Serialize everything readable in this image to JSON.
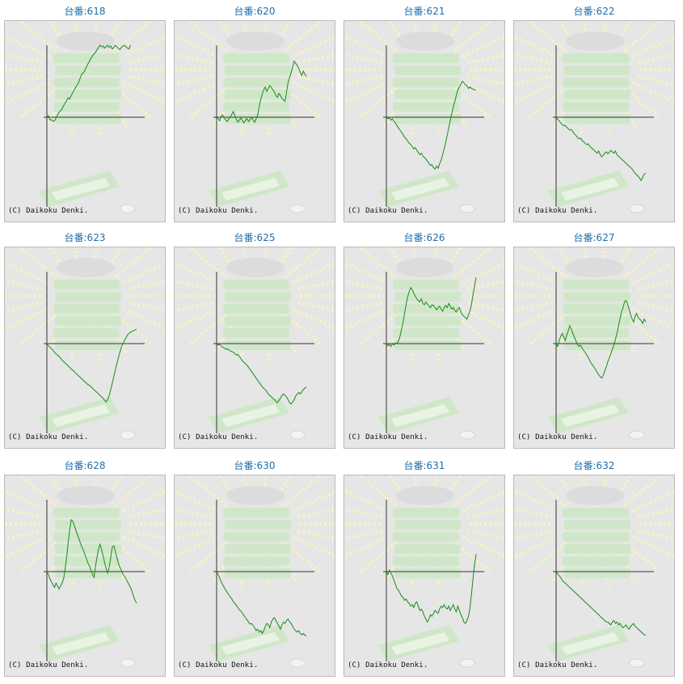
{
  "page": {
    "copyright": "(C) Daikoku Denki.",
    "colors": {
      "title": "#1f6fa8",
      "line": "#1a8a1a",
      "axis": "#333333",
      "panel_bg": "#e6e6e6",
      "border": "#b9b9b9",
      "watermark": "#cfe6c8",
      "rays": "#f4f2c4"
    }
  },
  "chart_data": [
    {
      "type": "line",
      "title": "台番:618",
      "ylim": [
        -100,
        100
      ],
      "x": [
        0,
        1,
        2,
        3,
        4,
        5,
        6,
        7,
        8,
        9,
        10,
        11,
        12,
        13,
        14,
        15,
        16,
        17,
        18,
        19,
        20,
        21,
        22,
        23,
        24,
        25,
        26,
        27,
        28,
        29,
        30,
        31,
        32,
        33,
        34,
        35,
        36,
        37,
        38,
        39,
        40,
        41,
        42,
        43,
        44,
        45,
        46,
        47,
        48,
        49,
        50,
        51,
        52,
        53,
        54,
        55
      ],
      "values": [
        0,
        2,
        -4,
        -3,
        -6,
        -5,
        -1,
        3,
        7,
        9,
        12,
        16,
        20,
        23,
        27,
        25,
        30,
        34,
        38,
        42,
        45,
        49,
        55,
        60,
        62,
        65,
        70,
        74,
        78,
        82,
        85,
        88,
        90,
        94,
        97,
        100,
        98,
        99,
        96,
        98,
        100,
        97,
        99,
        95,
        97,
        100,
        98,
        96,
        94,
        97,
        99,
        100,
        98,
        96,
        95,
        100
      ]
    },
    {
      "type": "line",
      "title": "台番:620",
      "ylim": [
        -100,
        100
      ],
      "x": [
        0,
        1,
        2,
        3,
        4,
        5,
        6,
        7,
        8,
        9,
        10,
        11,
        12,
        13,
        14,
        15,
        16,
        17,
        18,
        19,
        20,
        21,
        22,
        23,
        24,
        25,
        26,
        27,
        28,
        29,
        30,
        31,
        32,
        33,
        34,
        35,
        36,
        37,
        38,
        39,
        40,
        41,
        42,
        43,
        44,
        45,
        46,
        47,
        48,
        49,
        50,
        51,
        52,
        53,
        54,
        55,
        56,
        57,
        58,
        59
      ],
      "values": [
        0,
        -2,
        -5,
        2,
        3,
        -1,
        -4,
        -6,
        -2,
        0,
        4,
        8,
        2,
        -3,
        -7,
        -4,
        -1,
        -5,
        -8,
        -4,
        -2,
        -6,
        -3,
        0,
        -4,
        -7,
        -2,
        3,
        15,
        25,
        32,
        38,
        42,
        36,
        40,
        44,
        41,
        38,
        35,
        30,
        28,
        33,
        30,
        26,
        24,
        22,
        35,
        48,
        55,
        62,
        70,
        78,
        75,
        72,
        68,
        62,
        58,
        64,
        60,
        57
      ]
    },
    {
      "type": "line",
      "title": "台番:621",
      "ylim": [
        -100,
        100
      ],
      "x": [
        0,
        1,
        2,
        3,
        4,
        5,
        6,
        7,
        8,
        9,
        10,
        11,
        12,
        13,
        14,
        15,
        16,
        17,
        18,
        19,
        20,
        21,
        22,
        23,
        24,
        25,
        26,
        27,
        28,
        29,
        30,
        31,
        32,
        33,
        34,
        35,
        36,
        37,
        38,
        39,
        40,
        41,
        42,
        43,
        44,
        45,
        46,
        47,
        48,
        49,
        50,
        51,
        52,
        53,
        54,
        55,
        56,
        57,
        58,
        59
      ],
      "values": [
        0,
        -2,
        -1,
        -4,
        -2,
        -6,
        -8,
        -12,
        -15,
        -18,
        -21,
        -24,
        -28,
        -30,
        -33,
        -36,
        -38,
        -41,
        -44,
        -42,
        -46,
        -49,
        -52,
        -50,
        -54,
        -56,
        -58,
        -61,
        -64,
        -67,
        -66,
        -70,
        -72,
        -68,
        -71,
        -65,
        -60,
        -52,
        -44,
        -35,
        -25,
        -15,
        -5,
        5,
        14,
        22,
        30,
        38,
        42,
        46,
        50,
        48,
        45,
        44,
        40,
        42,
        40,
        39,
        38,
        38
      ]
    },
    {
      "type": "line",
      "title": "台番:622",
      "ylim": [
        -100,
        100
      ],
      "x": [
        0,
        1,
        2,
        3,
        4,
        5,
        6,
        7,
        8,
        9,
        10,
        11,
        12,
        13,
        14,
        15,
        16,
        17,
        18,
        19,
        20,
        21,
        22,
        23,
        24,
        25,
        26,
        27,
        28,
        29,
        30,
        31,
        32,
        33,
        34,
        35,
        36,
        37,
        38,
        39,
        40,
        41,
        42,
        43,
        44,
        45,
        46,
        47,
        48,
        49,
        50,
        51,
        52,
        53,
        54,
        55,
        56,
        57,
        58,
        59
      ],
      "values": [
        0,
        -3,
        -5,
        -8,
        -10,
        -12,
        -11,
        -14,
        -16,
        -18,
        -17,
        -20,
        -23,
        -25,
        -28,
        -30,
        -29,
        -32,
        -34,
        -36,
        -38,
        -37,
        -40,
        -42,
        -44,
        -46,
        -48,
        -50,
        -47,
        -52,
        -55,
        -53,
        -50,
        -48,
        -51,
        -49,
        -46,
        -48,
        -50,
        -47,
        -52,
        -54,
        -56,
        -58,
        -60,
        -62,
        -64,
        -66,
        -68,
        -70,
        -72,
        -75,
        -78,
        -80,
        -82,
        -85,
        -88,
        -83,
        -79,
        -78
      ]
    },
    {
      "type": "line",
      "title": "台番:623",
      "ylim": [
        -100,
        100
      ],
      "x": [
        0,
        1,
        2,
        3,
        4,
        5,
        6,
        7,
        8,
        9,
        10,
        11,
        12,
        13,
        14,
        15,
        16,
        17,
        18,
        19,
        20,
        21,
        22,
        23,
        24,
        25,
        26,
        27,
        28,
        29,
        30,
        31,
        32,
        33,
        34,
        35,
        36,
        37,
        38,
        39,
        40,
        41,
        42,
        43,
        44,
        45,
        46,
        47,
        48,
        49,
        50,
        51,
        52,
        53,
        54,
        55,
        56,
        57,
        58,
        59
      ],
      "values": [
        0,
        -3,
        -5,
        -7,
        -9,
        -12,
        -14,
        -16,
        -18,
        -20,
        -23,
        -25,
        -27,
        -29,
        -31,
        -33,
        -35,
        -37,
        -39,
        -41,
        -43,
        -45,
        -47,
        -49,
        -51,
        -53,
        -55,
        -57,
        -58,
        -60,
        -62,
        -64,
        -66,
        -68,
        -70,
        -72,
        -74,
        -76,
        -79,
        -81,
        -78,
        -72,
        -64,
        -55,
        -46,
        -37,
        -28,
        -20,
        -12,
        -5,
        0,
        4,
        8,
        12,
        14,
        16,
        17,
        18,
        19,
        20
      ]
    },
    {
      "type": "line",
      "title": "台番:625",
      "ylim": [
        -100,
        100
      ],
      "x": [
        0,
        1,
        2,
        3,
        4,
        5,
        6,
        7,
        8,
        9,
        10,
        11,
        12,
        13,
        14,
        15,
        16,
        17,
        18,
        19,
        20,
        21,
        22,
        23,
        24,
        25,
        26,
        27,
        28,
        29,
        30,
        31,
        32,
        33,
        34,
        35,
        36,
        37,
        38,
        39,
        40,
        41,
        42,
        43,
        44,
        45,
        46,
        47,
        48,
        49,
        50,
        51,
        52,
        53,
        54,
        55,
        56,
        57,
        58,
        59
      ],
      "values": [
        0,
        -2,
        -1,
        -3,
        -5,
        -6,
        -8,
        -7,
        -9,
        -10,
        -11,
        -12,
        -14,
        -16,
        -15,
        -18,
        -21,
        -24,
        -26,
        -28,
        -30,
        -33,
        -36,
        -39,
        -42,
        -45,
        -48,
        -51,
        -54,
        -57,
        -60,
        -62,
        -64,
        -67,
        -70,
        -72,
        -74,
        -76,
        -78,
        -80,
        -82,
        -79,
        -76,
        -72,
        -70,
        -72,
        -74,
        -78,
        -82,
        -84,
        -81,
        -78,
        -73,
        -70,
        -68,
        -70,
        -67,
        -64,
        -62,
        -60
      ]
    },
    {
      "type": "line",
      "title": "台番:626",
      "ylim": [
        -100,
        100
      ],
      "x": [
        0,
        1,
        2,
        3,
        4,
        5,
        6,
        7,
        8,
        9,
        10,
        11,
        12,
        13,
        14,
        15,
        16,
        17,
        18,
        19,
        20,
        21,
        22,
        23,
        24,
        25,
        26,
        27,
        28,
        29,
        30,
        31,
        32,
        33,
        34,
        35,
        36,
        37,
        38,
        39,
        40,
        41,
        42,
        43,
        44,
        45,
        46,
        47,
        48,
        49,
        50,
        51,
        52,
        53,
        54,
        55,
        56,
        57,
        58,
        59
      ],
      "values": [
        0,
        -3,
        -1,
        -4,
        0,
        -2,
        1,
        0,
        4,
        10,
        20,
        30,
        42,
        55,
        65,
        72,
        78,
        75,
        70,
        66,
        62,
        60,
        58,
        62,
        56,
        54,
        58,
        55,
        52,
        50,
        54,
        53,
        50,
        47,
        50,
        52,
        48,
        45,
        50,
        53,
        50,
        56,
        52,
        48,
        50,
        46,
        44,
        48,
        50,
        44,
        40,
        38,
        36,
        34,
        40,
        46,
        55,
        68,
        80,
        92
      ]
    },
    {
      "type": "line",
      "title": "台番:627",
      "ylim": [
        -100,
        100
      ],
      "x": [
        0,
        1,
        2,
        3,
        4,
        5,
        6,
        7,
        8,
        9,
        10,
        11,
        12,
        13,
        14,
        15,
        16,
        17,
        18,
        19,
        20,
        21,
        22,
        23,
        24,
        25,
        26,
        27,
        28,
        29,
        30,
        31,
        32,
        33,
        34,
        35,
        36,
        37,
        38,
        39,
        40,
        41,
        42,
        43,
        44,
        45,
        46,
        47,
        48,
        49,
        50,
        51,
        52,
        53,
        54,
        55,
        56,
        57,
        58,
        59
      ],
      "values": [
        0,
        -4,
        4,
        10,
        14,
        9,
        4,
        12,
        18,
        25,
        20,
        14,
        9,
        4,
        -1,
        -4,
        -2,
        -6,
        -9,
        -12,
        -15,
        -19,
        -23,
        -27,
        -30,
        -33,
        -36,
        -40,
        -43,
        -46,
        -48,
        -44,
        -38,
        -32,
        -25,
        -20,
        -14,
        -8,
        -2,
        6,
        14,
        24,
        34,
        44,
        50,
        58,
        60,
        55,
        48,
        40,
        34,
        30,
        38,
        42,
        36,
        34,
        32,
        28,
        34,
        30
      ]
    },
    {
      "type": "line",
      "title": "台番:628",
      "ylim": [
        -100,
        100
      ],
      "x": [
        0,
        1,
        2,
        3,
        4,
        5,
        6,
        7,
        8,
        9,
        10,
        11,
        12,
        13,
        14,
        15,
        16,
        17,
        18,
        19,
        20,
        21,
        22,
        23,
        24,
        25,
        26,
        27,
        28,
        29,
        30,
        31,
        32,
        33,
        34,
        35,
        36,
        37,
        38,
        39,
        40,
        41,
        42,
        43,
        44,
        45,
        46,
        47,
        48,
        49,
        50,
        51,
        52,
        53,
        54,
        55,
        56,
        57,
        58,
        59
      ],
      "values": [
        0,
        -4,
        -10,
        -14,
        -18,
        -22,
        -16,
        -20,
        -24,
        -20,
        -16,
        -10,
        4,
        20,
        40,
        58,
        72,
        70,
        64,
        58,
        52,
        46,
        40,
        34,
        30,
        24,
        18,
        12,
        8,
        2,
        -4,
        -8,
        8,
        20,
        32,
        38,
        30,
        22,
        12,
        4,
        -2,
        6,
        20,
        34,
        36,
        28,
        20,
        12,
        6,
        2,
        -4,
        -6,
        -10,
        -14,
        -18,
        -22,
        -28,
        -34,
        -40,
        -44
      ]
    },
    {
      "type": "line",
      "title": "台番:630",
      "ylim": [
        -100,
        100
      ],
      "x": [
        0,
        1,
        2,
        3,
        4,
        5,
        6,
        7,
        8,
        9,
        10,
        11,
        12,
        13,
        14,
        15,
        16,
        17,
        18,
        19,
        20,
        21,
        22,
        23,
        24,
        25,
        26,
        27,
        28,
        29,
        30,
        31,
        32,
        33,
        34,
        35,
        36,
        37,
        38,
        39,
        40,
        41,
        42,
        43,
        44,
        45,
        46,
        47,
        48,
        49,
        50,
        51,
        52,
        53,
        54,
        55,
        56,
        57,
        58,
        59
      ],
      "values": [
        0,
        -4,
        -9,
        -14,
        -18,
        -22,
        -26,
        -29,
        -32,
        -35,
        -38,
        -42,
        -44,
        -47,
        -50,
        -53,
        -55,
        -58,
        -61,
        -64,
        -67,
        -70,
        -73,
        -72,
        -75,
        -78,
        -82,
        -80,
        -84,
        -82,
        -86,
        -82,
        -76,
        -72,
        -74,
        -78,
        -70,
        -66,
        -64,
        -68,
        -72,
        -76,
        -80,
        -74,
        -70,
        -72,
        -68,
        -66,
        -70,
        -72,
        -76,
        -80,
        -82,
        -84,
        -82,
        -86,
        -88,
        -86,
        -88,
        -90
      ]
    },
    {
      "type": "line",
      "title": "台番:631",
      "ylim": [
        -100,
        100
      ],
      "x": [
        0,
        1,
        2,
        3,
        4,
        5,
        6,
        7,
        8,
        9,
        10,
        11,
        12,
        13,
        14,
        15,
        16,
        17,
        18,
        19,
        20,
        21,
        22,
        23,
        24,
        25,
        26,
        27,
        28,
        29,
        30,
        31,
        32,
        33,
        34,
        35,
        36,
        37,
        38,
        39,
        40,
        41,
        42,
        43,
        44,
        45,
        46,
        47,
        48,
        49,
        50,
        51,
        52,
        53,
        54,
        55,
        56,
        57,
        58,
        59
      ],
      "values": [
        0,
        -4,
        2,
        -2,
        -6,
        -12,
        -18,
        -24,
        -26,
        -30,
        -34,
        -36,
        -40,
        -38,
        -42,
        -44,
        -48,
        -46,
        -50,
        -44,
        -42,
        -48,
        -54,
        -52,
        -56,
        -62,
        -66,
        -70,
        -66,
        -60,
        -62,
        -58,
        -54,
        -56,
        -58,
        -52,
        -48,
        -50,
        -46,
        -50,
        -52,
        -48,
        -54,
        -50,
        -46,
        -52,
        -56,
        -48,
        -54,
        -60,
        -64,
        -70,
        -72,
        -68,
        -62,
        -50,
        -30,
        -10,
        10,
        24
      ]
    },
    {
      "type": "line",
      "title": "台番:632",
      "ylim": [
        -100,
        100
      ],
      "x": [
        0,
        1,
        2,
        3,
        4,
        5,
        6,
        7,
        8,
        9,
        10,
        11,
        12,
        13,
        14,
        15,
        16,
        17,
        18,
        19,
        20,
        21,
        22,
        23,
        24,
        25,
        26,
        27,
        28,
        29,
        30,
        31,
        32,
        33,
        34,
        35,
        36,
        37,
        38,
        39,
        40,
        41,
        42,
        43,
        44,
        45,
        46,
        47,
        48,
        49,
        50,
        51,
        52,
        53,
        54,
        55,
        56,
        57,
        58,
        59
      ],
      "values": [
        0,
        -3,
        -6,
        -8,
        -12,
        -14,
        -16,
        -18,
        -20,
        -22,
        -24,
        -26,
        -28,
        -30,
        -32,
        -34,
        -36,
        -38,
        -40,
        -42,
        -44,
        -46,
        -48,
        -50,
        -52,
        -54,
        -56,
        -58,
        -60,
        -62,
        -64,
        -66,
        -68,
        -70,
        -70,
        -72,
        -74,
        -70,
        -68,
        -72,
        -70,
        -74,
        -72,
        -76,
        -78,
        -76,
        -74,
        -78,
        -80,
        -76,
        -74,
        -72,
        -76,
        -78,
        -80,
        -82,
        -84,
        -86,
        -88,
        -88
      ]
    }
  ]
}
